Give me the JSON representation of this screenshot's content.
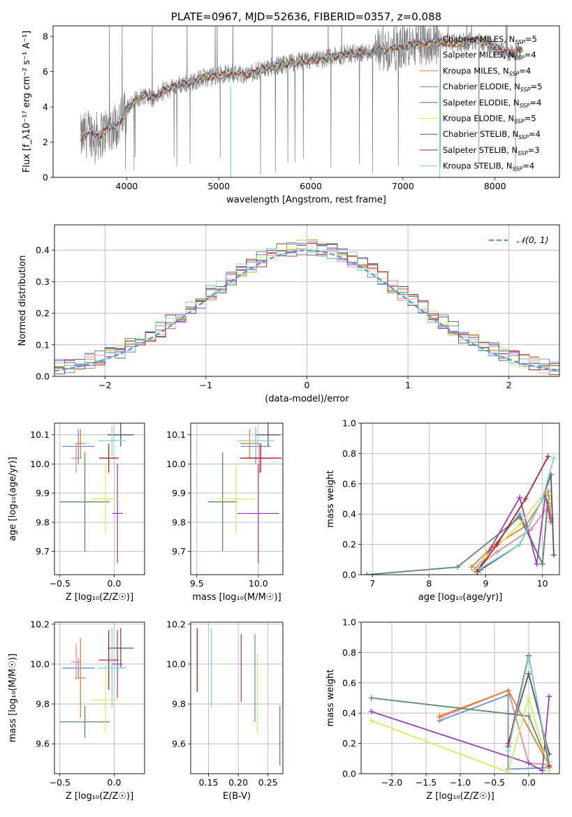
{
  "colors": {
    "chabrier_miles": "#6b8fd6",
    "salpeter_miles": "#e8899a",
    "kroupa_miles": "#e87d2a",
    "chabrier_elodie": "#5a8a6a",
    "salpeter_elodie": "#9a3dbb",
    "kroupa_elodie": "#d6ec5c",
    "chabrier_stelib": "#555555",
    "salpeter_stelib": "#b22222",
    "kroupa_stelib": "#7ad6da",
    "data": "#808080",
    "normal": "#5b8fd6"
  },
  "chart_data": [
    {
      "id": "spectrum",
      "type": "line",
      "title": "PLATE=0967, MJD=52636, FIBERID=0357, z=0.088",
      "xlabel": "wavelength [Angstrom, rest frame]",
      "ylabel": "Flux [f_λ10⁻¹⁷ erg cm⁻² s⁻¹ A⁻¹]",
      "xlim": [
        3200,
        8700
      ],
      "ylim": [
        0,
        8.6
      ],
      "xticks": [
        "4000",
        "5000",
        "6000",
        "7000",
        "8000"
      ],
      "yticks": [
        "0",
        "2",
        "4",
        "6",
        "8"
      ],
      "legend_loc": "upper-right",
      "legend": [
        {
          "key": "chabrier_miles",
          "label": "Chabrier MILES, N",
          "sub": "SSP",
          "tail": "=5"
        },
        {
          "key": "salpeter_miles",
          "label": "Salpeter MILES, N",
          "sub": "SSP",
          "tail": "=4"
        },
        {
          "key": "kroupa_miles",
          "label": "Kroupa MILES, N",
          "sub": "SSP",
          "tail": "=4"
        },
        {
          "key": "chabrier_elodie",
          "label": "Chabrier ELODIE, N",
          "sub": "SSP",
          "tail": "=5"
        },
        {
          "key": "salpeter_elodie",
          "label": "Salpeter ELODIE, N",
          "sub": "SSP",
          "tail": "=4"
        },
        {
          "key": "kroupa_elodie",
          "label": "Kroupa ELODIE, N",
          "sub": "SSP",
          "tail": "=5"
        },
        {
          "key": "chabrier_stelib",
          "label": "Chabrier STELIB, N",
          "sub": "SSP",
          "tail": "=4"
        },
        {
          "key": "salpeter_stelib",
          "label": "Salpeter STELIB, N",
          "sub": "SSP",
          "tail": "=3"
        },
        {
          "key": "kroupa_stelib",
          "label": "Kroupa STELIB, N",
          "sub": "SSP",
          "tail": "=4"
        }
      ],
      "continuum": {
        "x": [
          3500,
          3600,
          3700,
          3800,
          3900,
          3950,
          4000,
          4100,
          4200,
          4300,
          4400,
          4500,
          4600,
          4700,
          4800,
          4900,
          5000,
          5100,
          5200,
          5300,
          5400,
          5500,
          5600,
          5800,
          6000,
          6200,
          6400,
          6600,
          6800,
          7000,
          7200,
          7400,
          7600,
          7800,
          8000,
          8200,
          8300
        ],
        "y": [
          2.2,
          2.6,
          2.3,
          2.8,
          3.0,
          3.3,
          3.9,
          4.4,
          4.7,
          4.5,
          4.9,
          5.1,
          5.3,
          5.4,
          5.6,
          5.7,
          5.8,
          5.9,
          5.9,
          5.8,
          6.0,
          6.2,
          6.3,
          6.5,
          6.6,
          6.8,
          7.0,
          7.1,
          7.2,
          7.4,
          7.6,
          7.7,
          7.6,
          7.8,
          7.4,
          7.0,
          7.3
        ]
      },
      "dips": [
        {
          "x": 5130,
          "y": 0
        },
        {
          "x": 7400,
          "y": 0
        }
      ]
    },
    {
      "id": "residuals",
      "type": "line",
      "xlabel": "(data-model)/error",
      "ylabel": "Normed distribution",
      "xlim": [
        -2.5,
        2.5
      ],
      "ylim": [
        0,
        0.48
      ],
      "xticks": [
        "−2",
        "−1",
        "0",
        "1",
        "2"
      ],
      "yticks": [
        "0.0",
        "0.1",
        "0.2",
        "0.3",
        "0.4"
      ],
      "legend_loc": "upper-right",
      "legend_label": "𝒩(0, 1)",
      "bin_width": 0.1
    },
    {
      "id": "age_vs_z",
      "type": "scatter",
      "xlabel": "Z [log₁₀(Z/Z☉)]",
      "ylabel": "age  [log₁₀(age/yr)]",
      "xlim": [
        -0.55,
        0.28
      ],
      "ylim": [
        9.62,
        10.14
      ],
      "xticks": [
        "−0.5",
        "0.0"
      ],
      "yticks": [
        "9.7",
        "9.8",
        "9.9",
        "10.0",
        "10.1"
      ],
      "points": [
        {
          "key": "chabrier_miles",
          "x": -0.33,
          "xerr": 0.15,
          "y": 10.06,
          "yerr": 0.06
        },
        {
          "key": "salpeter_miles",
          "x": -0.35,
          "xerr": 0.05,
          "y": 10.02,
          "yerr": 0.05
        },
        {
          "key": "kroupa_miles",
          "x": -0.31,
          "xerr": 0.05,
          "y": 10.07,
          "yerr": 0.05
        },
        {
          "key": "chabrier_elodie",
          "x": -0.27,
          "xerr": 0.23,
          "y": 9.87,
          "yerr": 0.17
        },
        {
          "key": "salpeter_elodie",
          "x": 0.03,
          "xerr": 0.05,
          "y": 9.83,
          "yerr": 0.17
        },
        {
          "key": "kroupa_elodie",
          "x": -0.08,
          "xerr": 0.12,
          "y": 9.88,
          "yerr": 0.12
        },
        {
          "key": "chabrier_stelib",
          "x": 0.06,
          "xerr": 0.12,
          "y": 10.1,
          "yerr": 0.04
        },
        {
          "key": "salpeter_stelib",
          "x": -0.05,
          "xerr": 0.09,
          "y": 10.02,
          "yerr": 0.05
        },
        {
          "key": "kroupa_stelib",
          "x": -0.02,
          "xerr": 0.13,
          "y": 10.08,
          "yerr": 0.05
        }
      ]
    },
    {
      "id": "age_vs_mass",
      "type": "scatter",
      "xlabel": "mass [log₁₀(M/M☉)]",
      "ylabel": "",
      "xlim": [
        9.45,
        10.2
      ],
      "ylim": [
        9.62,
        10.14
      ],
      "xticks": [
        "9.5",
        "10.0"
      ],
      "yticks": [
        "9.7",
        "9.8",
        "9.9",
        "10.0",
        "10.1"
      ],
      "points": [
        {
          "key": "chabrier_miles",
          "x": 9.98,
          "xerr": 0.12,
          "y": 10.06,
          "yerr": 0.06
        },
        {
          "key": "salpeter_miles",
          "x": 10.01,
          "xerr": 0.1,
          "y": 10.02,
          "yerr": 0.05
        },
        {
          "key": "kroupa_miles",
          "x": 9.93,
          "xerr": 0.08,
          "y": 10.07,
          "yerr": 0.05
        },
        {
          "key": "chabrier_elodie",
          "x": 9.71,
          "xerr": 0.12,
          "y": 9.87,
          "yerr": 0.17
        },
        {
          "key": "salpeter_elodie",
          "x": 10.0,
          "xerr": 0.17,
          "y": 9.83,
          "yerr": 0.17
        },
        {
          "key": "kroupa_elodie",
          "x": 9.82,
          "xerr": 0.15,
          "y": 9.88,
          "yerr": 0.12
        },
        {
          "key": "chabrier_stelib",
          "x": 10.08,
          "xerr": 0.1,
          "y": 10.1,
          "yerr": 0.04
        },
        {
          "key": "salpeter_stelib",
          "x": 10.02,
          "xerr": 0.17,
          "y": 10.02,
          "yerr": 0.05
        },
        {
          "key": "kroupa_stelib",
          "x": 9.98,
          "xerr": 0.15,
          "y": 10.08,
          "yerr": 0.05
        }
      ]
    },
    {
      "id": "weight_vs_age",
      "type": "line",
      "xlabel": "age  [log₁₀(age/yr)]",
      "ylabel": "mass weight",
      "xlim": [
        6.8,
        10.3
      ],
      "ylim": [
        0,
        1
      ],
      "xticks": [
        "7",
        "8",
        "9",
        "10"
      ],
      "yticks": [
        "0.0",
        "0.2",
        "0.4",
        "0.6",
        "0.8",
        "1.0"
      ],
      "series": [
        {
          "key": "chabrier_miles",
          "x": [
            8.8,
            9.6,
            10.0,
            10.1,
            10.15
          ],
          "y": [
            0.03,
            0.4,
            0.07,
            0.52,
            0.38
          ]
        },
        {
          "key": "salpeter_miles",
          "x": [
            8.85,
            9.2,
            9.8,
            10.1,
            10.15
          ],
          "y": [
            0.05,
            0.15,
            0.3,
            0.45,
            0.37
          ]
        },
        {
          "key": "kroupa_miles",
          "x": [
            8.75,
            9.1,
            9.7,
            10.1,
            10.15
          ],
          "y": [
            0.05,
            0.18,
            0.32,
            0.55,
            0.37
          ]
        },
        {
          "key": "chabrier_elodie",
          "x": [
            6.9,
            8.5,
            9.6,
            10.0,
            10.1
          ],
          "y": [
            0.0,
            0.05,
            0.38,
            0.07,
            0.5
          ]
        },
        {
          "key": "salpeter_elodie",
          "x": [
            8.85,
            9.6,
            9.9,
            10.05,
            10.15
          ],
          "y": [
            0.02,
            0.51,
            0.07,
            0.52,
            0.35
          ]
        },
        {
          "key": "kroupa_elodie",
          "x": [
            8.8,
            9.0,
            9.6,
            10.05,
            10.15
          ],
          "y": [
            0.02,
            0.12,
            0.33,
            0.55,
            0.46
          ]
        },
        {
          "key": "chabrier_stelib",
          "x": [
            8.9,
            9.6,
            10.0,
            10.15,
            10.2
          ],
          "y": [
            0.03,
            0.2,
            0.5,
            0.66,
            0.13
          ]
        },
        {
          "key": "salpeter_stelib",
          "x": [
            8.85,
            9.2,
            9.7,
            10.1
          ],
          "y": [
            0.02,
            0.2,
            0.5,
            0.78
          ]
        },
        {
          "key": "kroupa_stelib",
          "x": [
            8.9,
            9.6,
            10.0,
            10.2
          ],
          "y": [
            0.04,
            0.2,
            0.5,
            0.77
          ]
        }
      ]
    },
    {
      "id": "mass_vs_z",
      "type": "scatter",
      "xlabel": "Z [log₁₀(Z/Z☉)]",
      "ylabel": "mass [log₁₀(M/M☉)]",
      "xlim": [
        -0.55,
        0.28
      ],
      "ylim": [
        9.45,
        10.21
      ],
      "xticks": [
        "−0.5",
        "0.0"
      ],
      "yticks": [
        "9.6",
        "9.8",
        "10.0",
        "10.2"
      ],
      "points": [
        {
          "key": "chabrier_miles",
          "x": -0.33,
          "xerr": 0.15,
          "y": 9.98,
          "yerr": 0.05
        },
        {
          "key": "salpeter_miles",
          "x": -0.35,
          "xerr": 0.05,
          "y": 10.01,
          "yerr": 0.09
        },
        {
          "key": "kroupa_miles",
          "x": -0.31,
          "xerr": 0.05,
          "y": 9.93,
          "yerr": 0.2
        },
        {
          "key": "chabrier_elodie",
          "x": -0.27,
          "xerr": 0.23,
          "y": 9.71,
          "yerr": 0.08
        },
        {
          "key": "salpeter_elodie",
          "x": 0.03,
          "xerr": 0.05,
          "y": 10.0,
          "yerr": 0.17
        },
        {
          "key": "kroupa_elodie",
          "x": -0.08,
          "xerr": 0.12,
          "y": 9.82,
          "yerr": 0.17
        },
        {
          "key": "chabrier_stelib",
          "x": 0.06,
          "xerr": 0.12,
          "y": 10.08,
          "yerr": 0.1
        },
        {
          "key": "salpeter_stelib",
          "x": -0.05,
          "xerr": 0.09,
          "y": 10.02,
          "yerr": 0.15
        },
        {
          "key": "kroupa_stelib",
          "x": -0.02,
          "xerr": 0.13,
          "y": 9.98,
          "yerr": 0.2
        }
      ]
    },
    {
      "id": "mass_vs_ebv",
      "type": "scatter",
      "xlabel": "E(B-V)",
      "ylabel": "",
      "xlim": [
        0.12,
        0.275
      ],
      "ylim": [
        9.45,
        10.21
      ],
      "xticks": [
        "0.15",
        "0.20",
        "0.25"
      ],
      "yticks": [
        "9.6",
        "9.8",
        "10.0",
        "10.2"
      ],
      "points": [
        {
          "key": "salpeter_stelib",
          "x": 0.131,
          "y": 10.02,
          "yerr": 0.16
        },
        {
          "key": "kroupa_stelib",
          "x": 0.155,
          "y": 9.98,
          "yerr": 0.2
        },
        {
          "key": "salpeter_elodie",
          "x": 0.205,
          "y": 9.98,
          "yerr": 0.17
        },
        {
          "key": "chabrier_miles",
          "x": 0.228,
          "y": 9.93,
          "yerr": 0.22
        },
        {
          "key": "kroupa_elodie",
          "x": 0.232,
          "y": 9.85,
          "yerr": 0.2
        },
        {
          "key": "chabrier_elodie",
          "x": 0.27,
          "y": 9.64,
          "yerr": 0.15
        }
      ]
    },
    {
      "id": "weight_vs_z",
      "type": "line",
      "xlabel": "Z [log₁₀(Z/Z☉)]",
      "ylabel": "mass weight",
      "xlim": [
        -2.45,
        0.45
      ],
      "ylim": [
        0,
        1
      ],
      "xticks": [
        "−2.0",
        "−1.5",
        "−1.0",
        "−0.5",
        "0.0"
      ],
      "yticks": [
        "0.0",
        "0.2",
        "0.4",
        "0.6",
        "0.8",
        "1.0"
      ],
      "series": [
        {
          "key": "chabrier_miles",
          "x": [
            -1.3,
            -0.3,
            -0.3,
            0.3
          ],
          "y": [
            0.35,
            0.52,
            0.03,
            0.04
          ]
        },
        {
          "key": "salpeter_miles",
          "x": [
            -1.3,
            -0.3,
            0.0,
            0.3
          ],
          "y": [
            0.37,
            0.55,
            0.07,
            0.06
          ]
        },
        {
          "key": "kroupa_miles",
          "x": [
            -1.3,
            -0.3,
            0.3
          ],
          "y": [
            0.38,
            0.55,
            0.05
          ]
        },
        {
          "key": "chabrier_elodie",
          "x": [
            -2.3,
            0.0,
            0.3
          ],
          "y": [
            0.5,
            0.38,
            0.05
          ]
        },
        {
          "key": "salpeter_elodie",
          "x": [
            -2.3,
            0.0,
            0.2,
            0.3
          ],
          "y": [
            0.41,
            0.07,
            0.02,
            0.51
          ]
        },
        {
          "key": "kroupa_elodie",
          "x": [
            -2.3,
            -0.3,
            0.0,
            0.3
          ],
          "y": [
            0.35,
            0.01,
            0.5,
            0.02
          ]
        },
        {
          "key": "chabrier_stelib",
          "x": [
            -0.3,
            0.0,
            0.3
          ],
          "y": [
            0.2,
            0.66,
            0.13
          ]
        },
        {
          "key": "salpeter_stelib",
          "x": [
            -0.3,
            0.0,
            0.3
          ],
          "y": [
            0.18,
            0.78,
            0.05
          ]
        },
        {
          "key": "kroupa_stelib",
          "x": [
            -0.3,
            0.0,
            0.3
          ],
          "y": [
            0.15,
            0.77,
            0.08
          ]
        }
      ]
    }
  ]
}
